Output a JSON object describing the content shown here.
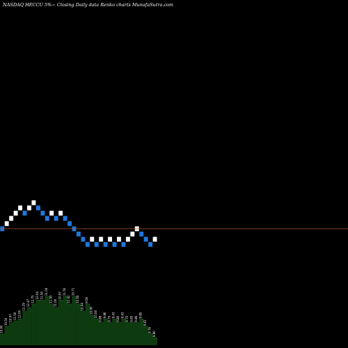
{
  "title": "NASDAQ HECCU 5%~  Closing Daily data  Renko  charts MunafaSutra.com",
  "colors": {
    "background": "#000000",
    "up_brick": "#ffffff",
    "down_brick": "#1e78dc",
    "brick_border": "#000000",
    "last_price_line": "#a0522d",
    "volume_fill": "#0e3a10",
    "volume_line": "#1a5a1c",
    "text": "#ffffff"
  },
  "chart_data": {
    "type": "renko",
    "bricks": [
      {
        "level": 10.0,
        "direction": "down"
      },
      {
        "level": 10.5,
        "direction": "up"
      },
      {
        "level": 11.0,
        "direction": "up"
      },
      {
        "level": 11.5,
        "direction": "up"
      },
      {
        "level": 12.0,
        "direction": "up"
      },
      {
        "level": 11.5,
        "direction": "down"
      },
      {
        "level": 12.0,
        "direction": "up"
      },
      {
        "level": 12.5,
        "direction": "up"
      },
      {
        "level": 12.0,
        "direction": "down"
      },
      {
        "level": 11.5,
        "direction": "down"
      },
      {
        "level": 11.0,
        "direction": "down"
      },
      {
        "level": 11.5,
        "direction": "up"
      },
      {
        "level": 11.0,
        "direction": "down"
      },
      {
        "level": 11.5,
        "direction": "up"
      },
      {
        "level": 11.0,
        "direction": "down"
      },
      {
        "level": 10.5,
        "direction": "down"
      },
      {
        "level": 10.0,
        "direction": "down"
      },
      {
        "level": 9.5,
        "direction": "down"
      },
      {
        "level": 9.0,
        "direction": "down"
      },
      {
        "level": 8.5,
        "direction": "down"
      },
      {
        "level": 9.0,
        "direction": "up"
      },
      {
        "level": 8.5,
        "direction": "down"
      },
      {
        "level": 9.0,
        "direction": "up"
      },
      {
        "level": 8.5,
        "direction": "down"
      },
      {
        "level": 9.0,
        "direction": "up"
      },
      {
        "level": 8.5,
        "direction": "down"
      },
      {
        "level": 9.0,
        "direction": "up"
      },
      {
        "level": 8.5,
        "direction": "down"
      },
      {
        "level": 9.0,
        "direction": "up"
      },
      {
        "level": 9.5,
        "direction": "up"
      },
      {
        "level": 10.0,
        "direction": "up"
      },
      {
        "level": 9.5,
        "direction": "down"
      },
      {
        "level": 9.0,
        "direction": "down"
      },
      {
        "level": 8.5,
        "direction": "down"
      },
      {
        "level": 9.0,
        "direction": "up"
      }
    ],
    "last_price": 9.75,
    "y_range": [
      0,
      30
    ],
    "volume": {
      "values": [
        6,
        10,
        12,
        13,
        14,
        18,
        20,
        22,
        24,
        24,
        26,
        22,
        20,
        24,
        26,
        22,
        26,
        22,
        18,
        22,
        16,
        14,
        12,
        14,
        12,
        14,
        12,
        14,
        12,
        12,
        12,
        14,
        10,
        6,
        4
      ],
      "labels": [
        "10.00",
        "10.50",
        "10.97",
        "11.50",
        "12.00",
        "12.29",
        "12.47",
        "12.75",
        "12.04",
        "11.50",
        "11.04",
        "11.50",
        "11.00",
        "10.97",
        "11.50",
        "11.42",
        "10.71",
        "10.04",
        "10.04",
        "9.56",
        "10.00",
        "10.00",
        "9.88",
        "9.86",
        "9.75",
        "9.43",
        "9.80",
        "9.43",
        "9.75",
        "9.85",
        "9.86",
        "9.85",
        "9.61",
        "9.76",
        "9.80"
      ]
    }
  }
}
